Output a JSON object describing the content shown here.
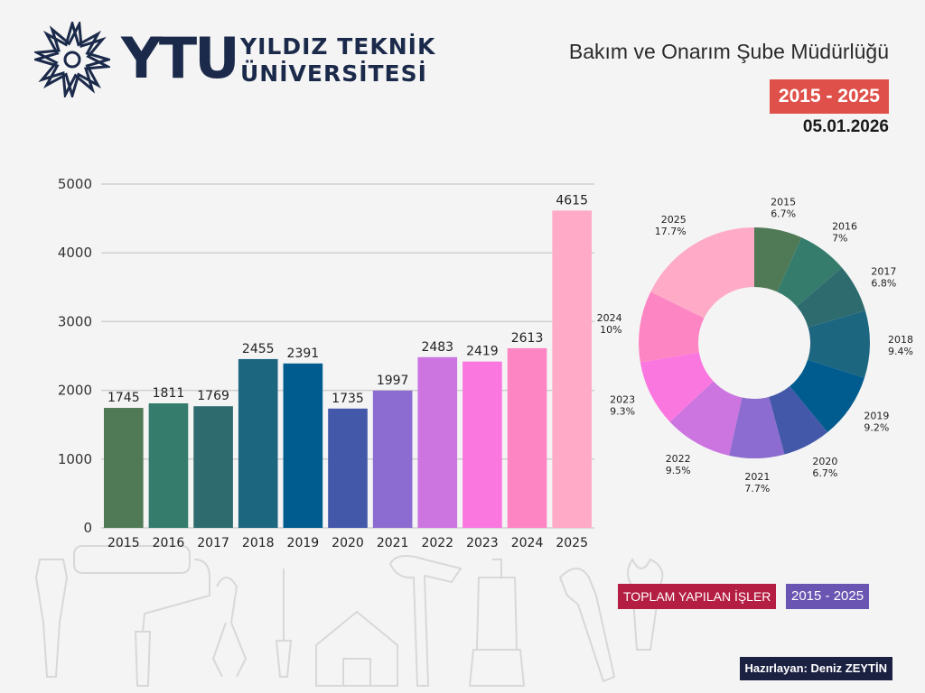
{
  "header": {
    "logo_abbr": "YTU",
    "logo_line1": "YILDIZ TEKNİK",
    "logo_line2": "ÜNİVERSİTESİ",
    "department": "Bakım ve Onarım Şube Müdürlüğü",
    "range_badge": "2015 - 2025",
    "date": "05.01.2026"
  },
  "legend": {
    "label": "TOPLAM YAPILAN İŞLER",
    "range": "2015 - 2025"
  },
  "footer": {
    "author": "Hazırlayan: Deniz ZEYTİN"
  },
  "icons": [
    "ytu-star-logo-icon",
    "tools-background-icon"
  ],
  "chart_data": [
    {
      "type": "bar",
      "categories": [
        "2015",
        "2016",
        "2017",
        "2018",
        "2019",
        "2020",
        "2021",
        "2022",
        "2023",
        "2024",
        "2025"
      ],
      "values": [
        1745,
        1811,
        1769,
        2455,
        2391,
        1735,
        1997,
        2483,
        2419,
        2613,
        4615
      ],
      "colors": [
        "#507a56",
        "#357c6d",
        "#2e6b6e",
        "#1d6680",
        "#005c8e",
        "#4458aa",
        "#8c6cd0",
        "#cc74e0",
        "#fa77e0",
        "#fe85c3",
        "#ffaac7"
      ],
      "ylim": [
        0,
        5000
      ],
      "yticks": [
        0,
        1000,
        2000,
        3000,
        4000,
        5000
      ],
      "grid": true
    },
    {
      "type": "pie",
      "style": "donut",
      "labels": [
        "2015",
        "2016",
        "2017",
        "2018",
        "2019",
        "2020",
        "2021",
        "2022",
        "2023",
        "2024",
        "2025"
      ],
      "values": [
        6.7,
        7,
        6.8,
        9.4,
        9.2,
        6.7,
        7.7,
        9.5,
        9.3,
        10,
        17.7
      ],
      "value_labels": [
        "6.7%",
        "7%",
        "6.8%",
        "9.4%",
        "9.2%",
        "6.7%",
        "7.7%",
        "9.5%",
        "9.3%",
        "10%",
        "17.7%"
      ],
      "colors": [
        "#507a56",
        "#357c6d",
        "#2e6b6e",
        "#1d6680",
        "#005c8e",
        "#4458aa",
        "#8c6cd0",
        "#cc74e0",
        "#fa77e0",
        "#fe85c3",
        "#ffaac7"
      ]
    }
  ]
}
